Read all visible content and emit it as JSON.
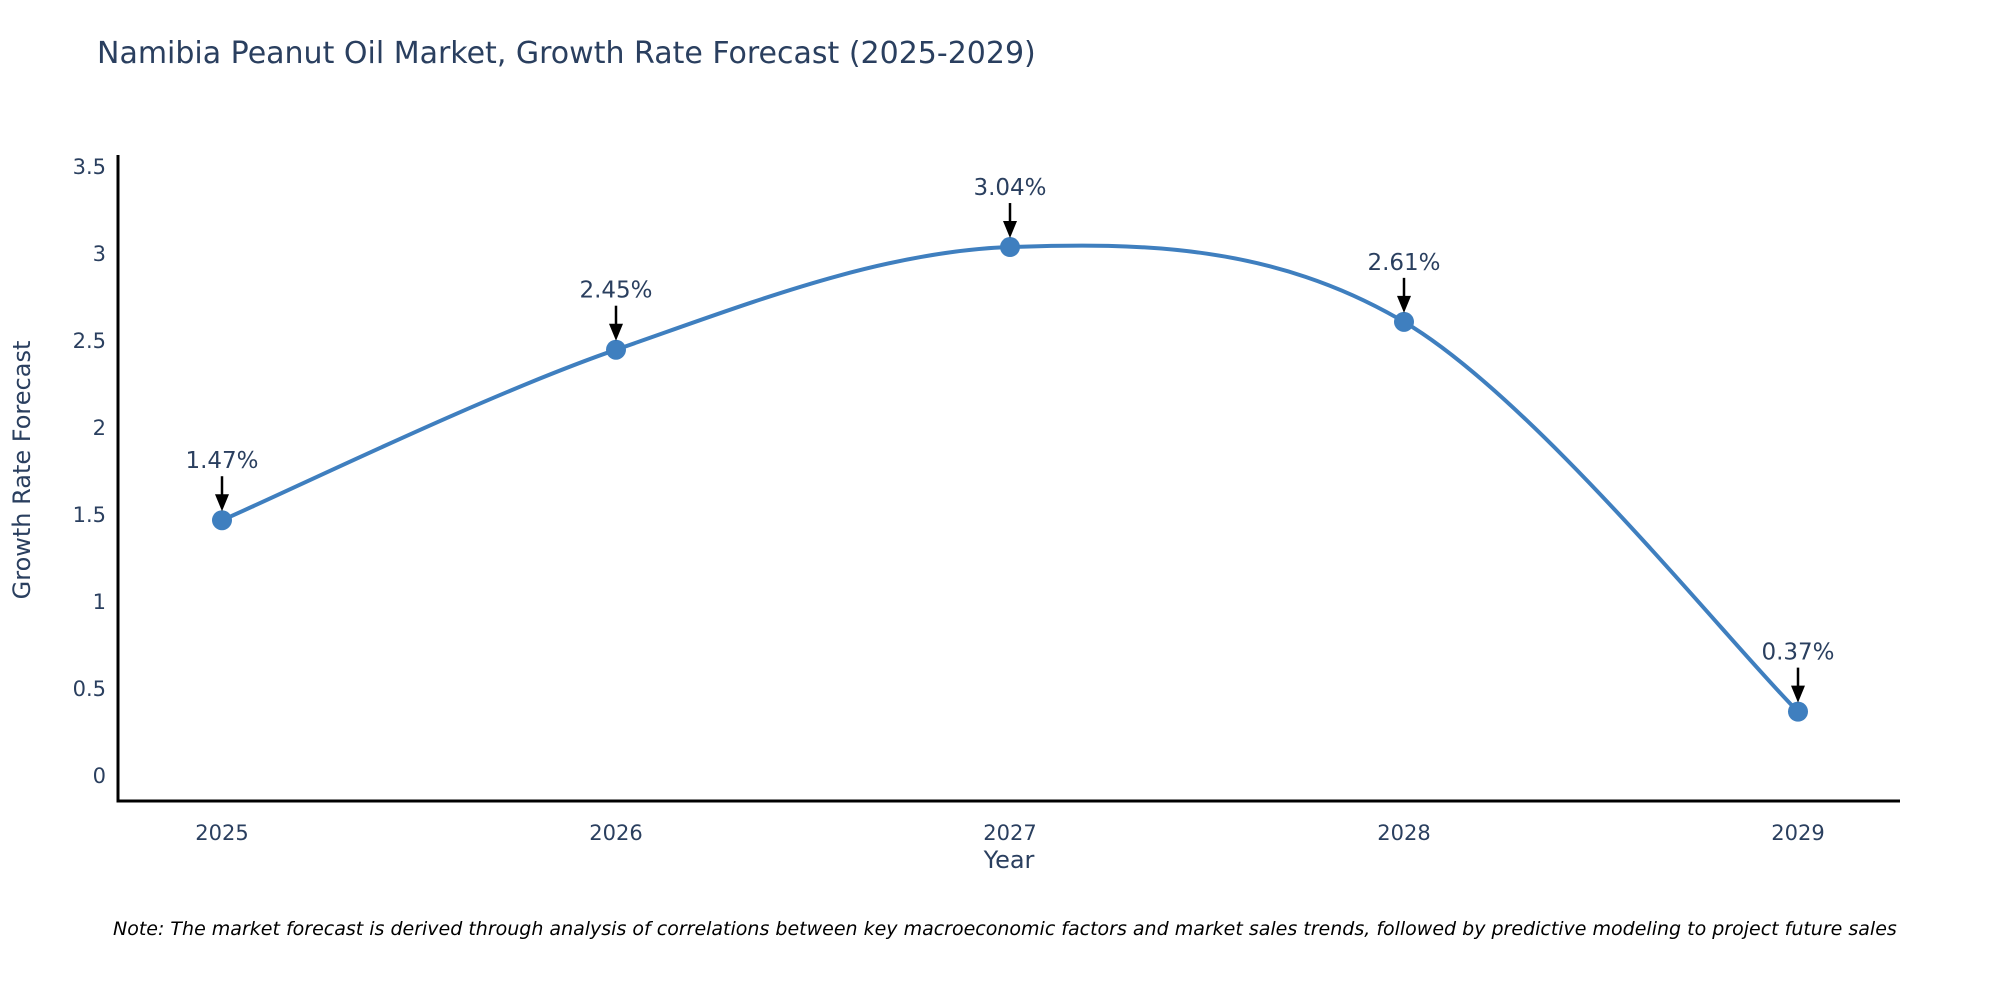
{
  "title": "Namibia Peanut Oil Market, Growth Rate Forecast (2025-2029)",
  "note": "Note: The market forecast is derived through analysis of correlations between key macroeconomic factors and market sales trends, followed by predictive modeling to project future sales",
  "chart_data": {
    "type": "line",
    "line_shape": "spline",
    "x": [
      2025,
      2026,
      2027,
      2028,
      2029
    ],
    "values": [
      1.47,
      2.45,
      3.04,
      2.61,
      0.37
    ],
    "point_labels": [
      "1.47%",
      "2.45%",
      "3.04%",
      "2.61%",
      "0.37%"
    ],
    "xlabel": "Year",
    "ylabel": "Growth Rate Forecast",
    "ylim": [
      0,
      3.5
    ],
    "yticks": [
      0,
      0.5,
      1,
      1.5,
      2,
      2.5,
      3,
      3.5
    ],
    "xticks": [
      "2025",
      "2026",
      "2027",
      "2028",
      "2029"
    ],
    "grid": false,
    "legend": "none",
    "colors": {
      "line": "#3f7fbf",
      "marker": "#3f7fbf",
      "axis": "#000000",
      "tick_text": "#2a3f5f",
      "title_text": "#2a3f5f",
      "annotation_arrow": "#000000"
    }
  }
}
